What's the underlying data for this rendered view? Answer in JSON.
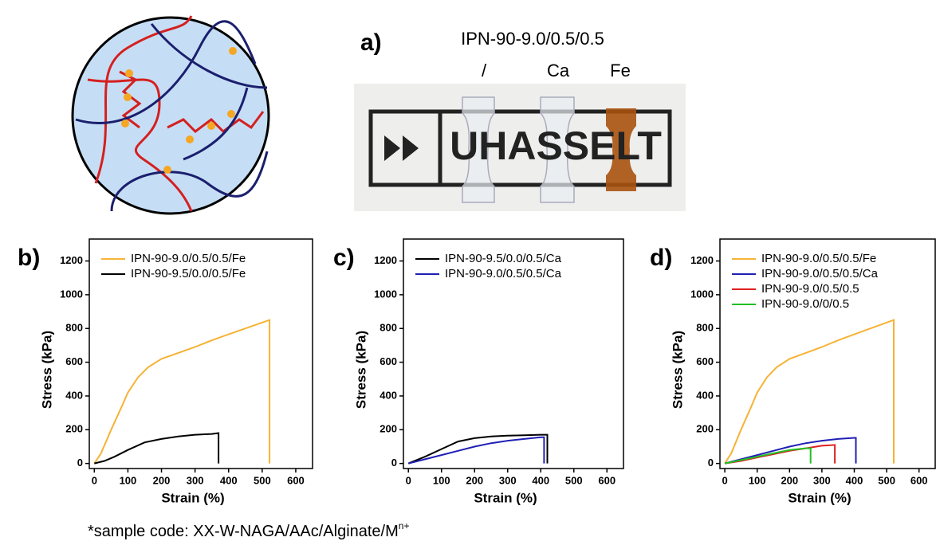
{
  "photo": {
    "panel_label": "a)",
    "title": "IPN-90-9.0/0.5/0.5",
    "sample_labels": [
      "/",
      "Ca",
      "Fe"
    ],
    "logo_text": "UHASSELT"
  },
  "footnote": {
    "text": "*sample code: XX-W-NAGA/AAc/Alginate/M",
    "superscript": "n+"
  },
  "chart_data": [
    {
      "type": "line",
      "panel_label": "b)",
      "x_label": "Strain (%)",
      "y_label": "Stress (kPa)",
      "xlim": [
        -15,
        650
      ],
      "ylim": [
        -30,
        1330
      ],
      "xticks": [
        0,
        100,
        200,
        300,
        400,
        500,
        600
      ],
      "yticks": [
        0,
        200,
        400,
        600,
        800,
        1000,
        1200
      ],
      "legend": "upper left",
      "series": [
        {
          "name": "IPN-90-9.0/0.5/0.5/Fe",
          "color": "#f5b335",
          "x": [
            0,
            20,
            50,
            80,
            100,
            130,
            160,
            200,
            250,
            300,
            350,
            400,
            450,
            500,
            522,
            522
          ],
          "values": [
            0,
            60,
            200,
            330,
            420,
            510,
            570,
            620,
            655,
            690,
            730,
            765,
            800,
            835,
            850,
            0
          ]
        },
        {
          "name": "IPN-90-9.5/0.0/0.5/Fe",
          "color": "#000000",
          "x": [
            0,
            30,
            60,
            100,
            150,
            200,
            250,
            300,
            350,
            370,
            370
          ],
          "values": [
            0,
            15,
            40,
            80,
            125,
            145,
            160,
            170,
            175,
            180,
            0
          ]
        }
      ]
    },
    {
      "type": "line",
      "panel_label": "c)",
      "x_label": "Strain (%)",
      "y_label": "Stress (kPa)",
      "xlim": [
        -15,
        650
      ],
      "ylim": [
        -30,
        1330
      ],
      "xticks": [
        0,
        100,
        200,
        300,
        400,
        500,
        600
      ],
      "yticks": [
        0,
        200,
        400,
        600,
        800,
        1000,
        1200
      ],
      "legend": "upper left",
      "series": [
        {
          "name": "IPN-90-9.5/0.0/0.5/Ca",
          "color": "#000000",
          "x": [
            0,
            50,
            100,
            150,
            200,
            250,
            300,
            350,
            400,
            420,
            420
          ],
          "values": [
            0,
            40,
            85,
            130,
            150,
            160,
            165,
            167,
            170,
            170,
            0
          ]
        },
        {
          "name": "IPN-90-9.0/0.5/0.5/Ca",
          "color": "#1f1fb4",
          "x": [
            0,
            50,
            100,
            150,
            200,
            250,
            300,
            350,
            400,
            410,
            410
          ],
          "values": [
            0,
            25,
            50,
            75,
            100,
            120,
            135,
            145,
            155,
            155,
            0
          ]
        }
      ]
    },
    {
      "type": "line",
      "panel_label": "d)",
      "x_label": "Strain (%)",
      "y_label": "Stress (kPa)",
      "xlim": [
        -15,
        650
      ],
      "ylim": [
        -30,
        1330
      ],
      "xticks": [
        0,
        100,
        200,
        300,
        400,
        500,
        600
      ],
      "yticks": [
        0,
        200,
        400,
        600,
        800,
        1000,
        1200
      ],
      "legend": "upper left",
      "series": [
        {
          "name": "IPN-90-9.0/0.5/0.5/Fe",
          "color": "#f5b335",
          "x": [
            0,
            20,
            50,
            80,
            100,
            130,
            160,
            200,
            250,
            300,
            350,
            400,
            450,
            500,
            522,
            522
          ],
          "values": [
            0,
            60,
            200,
            330,
            420,
            510,
            570,
            620,
            655,
            690,
            730,
            765,
            800,
            835,
            850,
            0
          ]
        },
        {
          "name": "IPN-90-9.0/0.5/0.5/Ca",
          "color": "#1f1fb4",
          "x": [
            0,
            50,
            100,
            150,
            200,
            250,
            300,
            350,
            400,
            405,
            405
          ],
          "values": [
            0,
            25,
            50,
            75,
            100,
            120,
            135,
            145,
            152,
            152,
            0
          ]
        },
        {
          "name": "IPN-90-9.0/0.5/0.5",
          "color": "#e02020",
          "x": [
            0,
            50,
            100,
            150,
            200,
            250,
            300,
            340,
            340
          ],
          "values": [
            0,
            15,
            35,
            55,
            75,
            90,
            105,
            110,
            0
          ]
        },
        {
          "name": "IPN-90-9.0/0/0.5",
          "color": "#22c022",
          "x": [
            0,
            50,
            100,
            150,
            200,
            250,
            265,
            265
          ],
          "values": [
            0,
            20,
            40,
            60,
            80,
            90,
            90,
            0
          ]
        }
      ]
    }
  ]
}
